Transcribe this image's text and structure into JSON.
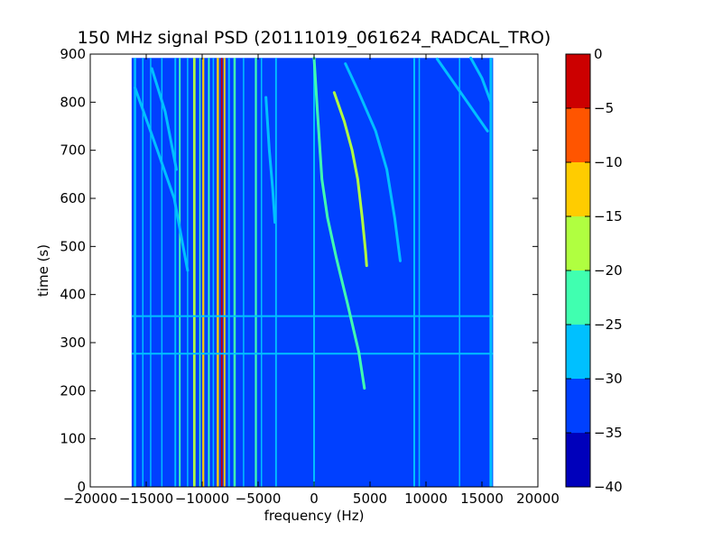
{
  "chart_data": {
    "type": "heatmap",
    "title": "150 MHz signal PSD (20111019_061624_RADCAL_TRO)",
    "xlabel": "frequency (Hz)",
    "ylabel": "time (s)",
    "xlim": [
      -20000,
      20000
    ],
    "ylim": [
      0,
      900
    ],
    "xticks": [
      "−20000",
      "−15000",
      "−10000",
      "−5000",
      "0",
      "5000",
      "10000",
      "15000",
      "20000"
    ],
    "yticks": [
      "0",
      "100",
      "200",
      "300",
      "400",
      "500",
      "600",
      "700",
      "800",
      "900"
    ],
    "data_extent": {
      "freq_hz": [
        -16300,
        16000
      ],
      "time_s": [
        0,
        892
      ]
    },
    "colorbar": {
      "levels": [
        -40,
        -35,
        -30,
        -25,
        -20,
        -15,
        -10,
        -5,
        0
      ],
      "tick_labels": [
        "−40",
        "−35",
        "−30",
        "−25",
        "−20",
        "−15",
        "−10",
        "−5",
        "0"
      ],
      "colors": [
        "#0000bb",
        "#0040ff",
        "#00c0ff",
        "#40ffb0",
        "#b0ff40",
        "#ffcc00",
        "#ff5500",
        "#cc0000"
      ]
    },
    "background_level_db": -32,
    "vertical_lines": [
      {
        "f": -16000,
        "db": -26,
        "w": 200
      },
      {
        "f": -15300,
        "db": -26,
        "w": 120
      },
      {
        "f": -14600,
        "db": -26,
        "w": 120
      },
      {
        "f": -13600,
        "db": -28,
        "w": 120
      },
      {
        "f": -12400,
        "db": -26,
        "w": 150
      },
      {
        "f": -12000,
        "db": -22,
        "w": 150
      },
      {
        "f": -11300,
        "db": -26,
        "w": 120
      },
      {
        "f": -10700,
        "db": -17,
        "w": 220
      },
      {
        "f": -10200,
        "db": -24,
        "w": 120
      },
      {
        "f": -9900,
        "db": -13,
        "w": 180
      },
      {
        "f": -9400,
        "db": -24,
        "w": 150
      },
      {
        "f": -9000,
        "db": -26,
        "w": 120
      },
      {
        "f": -8600,
        "db": -12,
        "w": 200
      },
      {
        "f": -8250,
        "db": -3,
        "w": 160
      },
      {
        "f": -8000,
        "db": -12,
        "w": 160
      },
      {
        "f": -7600,
        "db": -26,
        "w": 150
      },
      {
        "f": -7100,
        "db": -24,
        "w": 200
      },
      {
        "f": -6300,
        "db": -26,
        "w": 120
      },
      {
        "f": -5200,
        "db": -22,
        "w": 180
      },
      {
        "f": -4700,
        "db": -26,
        "w": 120
      },
      {
        "f": -3400,
        "db": -26,
        "w": 150
      },
      {
        "f": 0,
        "db": -26,
        "w": 160
      },
      {
        "f": 8950,
        "db": -26,
        "w": 160
      },
      {
        "f": 9400,
        "db": -28,
        "w": 120
      },
      {
        "f": 13000,
        "db": -28,
        "w": 120
      },
      {
        "f": 15800,
        "db": -26,
        "w": 250
      }
    ],
    "horizontal_lines": [
      {
        "t": 277,
        "db": -27,
        "f_range": [
          -16300,
          16000
        ]
      },
      {
        "t": 355,
        "db": -28,
        "f_range": [
          -16300,
          16000
        ]
      }
    ],
    "tracks": [
      {
        "db": -22,
        "points": [
          [
            0,
            892
          ],
          [
            300,
            780
          ],
          [
            700,
            640
          ],
          [
            1200,
            560
          ],
          [
            2000,
            475
          ],
          [
            3000,
            380
          ],
          [
            4000,
            280
          ],
          [
            4500,
            205
          ]
        ]
      },
      {
        "db": -20,
        "points": [
          [
            1800,
            820
          ],
          [
            2700,
            760
          ],
          [
            3400,
            700
          ],
          [
            3900,
            640
          ],
          [
            4300,
            560
          ],
          [
            4600,
            490
          ],
          [
            4700,
            460
          ]
        ]
      },
      {
        "db": -28,
        "points": [
          [
            2800,
            880
          ],
          [
            4000,
            820
          ],
          [
            5500,
            740
          ],
          [
            6500,
            660
          ],
          [
            7200,
            560
          ],
          [
            7700,
            470
          ]
        ]
      },
      {
        "db": -28,
        "points": [
          [
            -4300,
            810
          ],
          [
            -4000,
            700
          ],
          [
            -3700,
            620
          ],
          [
            -3500,
            550
          ]
        ]
      },
      {
        "db": -28,
        "points": [
          [
            -16000,
            830
          ],
          [
            -14000,
            700
          ],
          [
            -12500,
            600
          ],
          [
            -11300,
            450
          ]
        ]
      },
      {
        "db": -28,
        "points": [
          [
            -14500,
            870
          ],
          [
            -13300,
            780
          ],
          [
            -12300,
            660
          ]
        ]
      },
      {
        "db": -28,
        "points": [
          [
            11000,
            890
          ],
          [
            12500,
            840
          ],
          [
            14000,
            790
          ],
          [
            15500,
            740
          ]
        ]
      },
      {
        "db": -28,
        "points": [
          [
            14000,
            892
          ],
          [
            15000,
            850
          ],
          [
            15800,
            800
          ]
        ]
      }
    ]
  }
}
